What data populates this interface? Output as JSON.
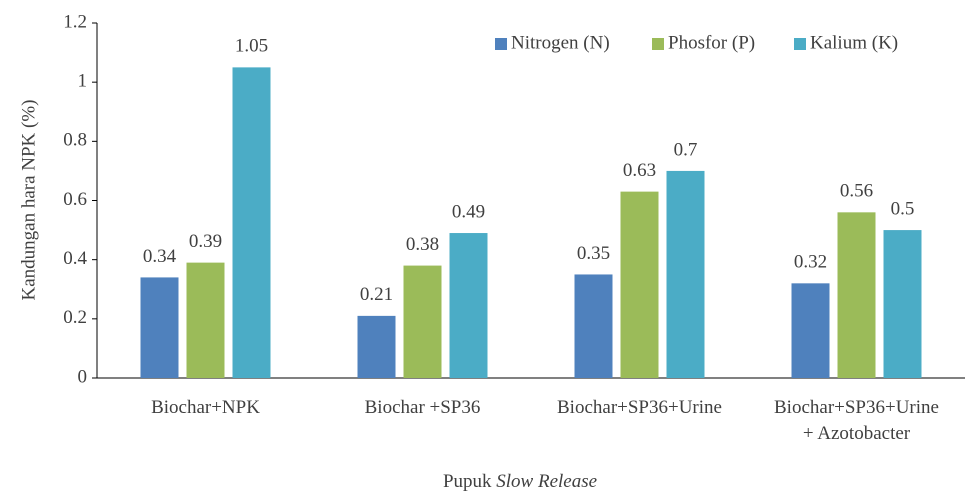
{
  "chart_data": {
    "type": "bar",
    "ylabel": "Kandungan hara  NPK (%)",
    "xlabel": [
      "Pupuk",
      "Slow Release"
    ],
    "categories": [
      "Biochar+NPK",
      "Biochar +SP36",
      "Biochar+SP36+Urine",
      "Biochar+SP36+Urine\n+ Azotobacter"
    ],
    "series": [
      {
        "name": "Nitrogen (N)",
        "color": "#4f81bd",
        "values": [
          0.34,
          0.21,
          0.35,
          0.32
        ]
      },
      {
        "name": "Phosfor (P)",
        "color": "#9bbb59",
        "values": [
          0.39,
          0.38,
          0.63,
          0.56
        ]
      },
      {
        "name": "Kalium (K)",
        "color": "#4bacc6",
        "values": [
          1.05,
          0.49,
          0.7,
          0.5
        ]
      }
    ],
    "ylim": [
      0,
      1.2
    ],
    "yticks": [
      0,
      0.2,
      0.4,
      0.6,
      0.8,
      1,
      1.2
    ],
    "grid": false,
    "legend": "top-right"
  }
}
